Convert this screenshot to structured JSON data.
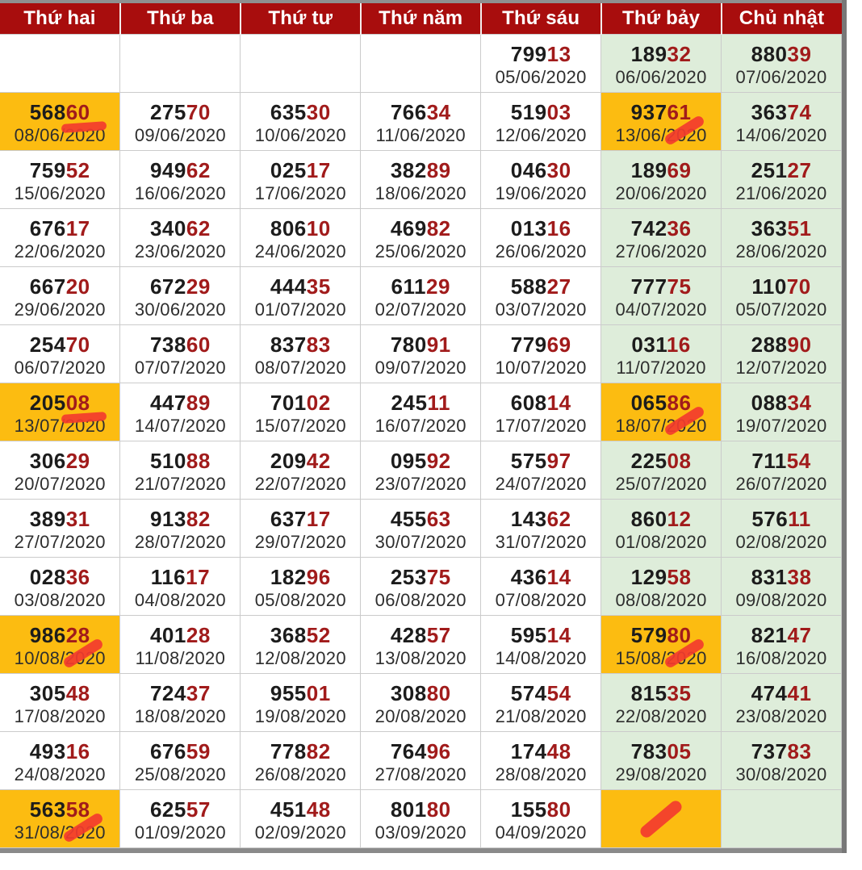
{
  "colors": {
    "header_bg": "#A80D0D",
    "header_text": "#FFFFFF",
    "cell_bg": "#FFFFFF",
    "weekend_bg": "#DEEDDA",
    "highlight_bg": "#FCBC11",
    "num_main": "#1C1C1C",
    "num_tail": "#A11B1B",
    "date_text": "#2E2E2E",
    "grid_line": "#CBCBCB",
    "marker": "#F33B2E",
    "top_bar": "#8F8F8F",
    "bottom_bar": "#8A8A8A",
    "right_bar": "#787878"
  },
  "table": {
    "days": [
      "Thứ hai",
      "Thứ ba",
      "Thứ tư",
      "Thứ năm",
      "Thứ sáu",
      "Thứ bảy",
      "Chủ nhật"
    ],
    "rows": [
      [
        null,
        null,
        null,
        null,
        {
          "head": "799",
          "tail": "13",
          "date": "05/06/2020"
        },
        {
          "head": "189",
          "tail": "32",
          "date": "06/06/2020"
        },
        {
          "head": "880",
          "tail": "39",
          "date": "07/06/2020"
        }
      ],
      [
        {
          "head": "568",
          "tail": "60",
          "date": "08/06/2020",
          "hl": true,
          "mark": "underline"
        },
        {
          "head": "275",
          "tail": "70",
          "date": "09/06/2020"
        },
        {
          "head": "635",
          "tail": "30",
          "date": "10/06/2020"
        },
        {
          "head": "766",
          "tail": "34",
          "date": "11/06/2020"
        },
        {
          "head": "519",
          "tail": "03",
          "date": "12/06/2020"
        },
        {
          "head": "937",
          "tail": "61",
          "date": "13/06/2020",
          "hl": true,
          "mark": "slash"
        },
        {
          "head": "363",
          "tail": "74",
          "date": "14/06/2020"
        }
      ],
      [
        {
          "head": "759",
          "tail": "52",
          "date": "15/06/2020"
        },
        {
          "head": "949",
          "tail": "62",
          "date": "16/06/2020"
        },
        {
          "head": "025",
          "tail": "17",
          "date": "17/06/2020"
        },
        {
          "head": "382",
          "tail": "89",
          "date": "18/06/2020"
        },
        {
          "head": "046",
          "tail": "30",
          "date": "19/06/2020"
        },
        {
          "head": "189",
          "tail": "69",
          "date": "20/06/2020"
        },
        {
          "head": "251",
          "tail": "27",
          "date": "21/06/2020"
        }
      ],
      [
        {
          "head": "676",
          "tail": "17",
          "date": "22/06/2020"
        },
        {
          "head": "340",
          "tail": "62",
          "date": "23/06/2020"
        },
        {
          "head": "806",
          "tail": "10",
          "date": "24/06/2020"
        },
        {
          "head": "469",
          "tail": "82",
          "date": "25/06/2020"
        },
        {
          "head": "013",
          "tail": "16",
          "date": "26/06/2020"
        },
        {
          "head": "742",
          "tail": "36",
          "date": "27/06/2020"
        },
        {
          "head": "363",
          "tail": "51",
          "date": "28/06/2020"
        }
      ],
      [
        {
          "head": "667",
          "tail": "20",
          "date": "29/06/2020"
        },
        {
          "head": "672",
          "tail": "29",
          "date": "30/06/2020"
        },
        {
          "head": "444",
          "tail": "35",
          "date": "01/07/2020"
        },
        {
          "head": "611",
          "tail": "29",
          "date": "02/07/2020"
        },
        {
          "head": "588",
          "tail": "27",
          "date": "03/07/2020"
        },
        {
          "head": "777",
          "tail": "75",
          "date": "04/07/2020"
        },
        {
          "head": "110",
          "tail": "70",
          "date": "05/07/2020"
        }
      ],
      [
        {
          "head": "254",
          "tail": "70",
          "date": "06/07/2020"
        },
        {
          "head": "738",
          "tail": "60",
          "date": "07/07/2020"
        },
        {
          "head": "837",
          "tail": "83",
          "date": "08/07/2020"
        },
        {
          "head": "780",
          "tail": "91",
          "date": "09/07/2020"
        },
        {
          "head": "779",
          "tail": "69",
          "date": "10/07/2020"
        },
        {
          "head": "031",
          "tail": "16",
          "date": "11/07/2020"
        },
        {
          "head": "288",
          "tail": "90",
          "date": "12/07/2020"
        }
      ],
      [
        {
          "head": "205",
          "tail": "08",
          "date": "13/07/2020",
          "hl": true,
          "mark": "underline"
        },
        {
          "head": "447",
          "tail": "89",
          "date": "14/07/2020"
        },
        {
          "head": "701",
          "tail": "02",
          "date": "15/07/2020"
        },
        {
          "head": "245",
          "tail": "11",
          "date": "16/07/2020"
        },
        {
          "head": "608",
          "tail": "14",
          "date": "17/07/2020"
        },
        {
          "head": "065",
          "tail": "86",
          "date": "18/07/2020",
          "hl": true,
          "mark": "slash"
        },
        {
          "head": "088",
          "tail": "34",
          "date": "19/07/2020"
        }
      ],
      [
        {
          "head": "306",
          "tail": "29",
          "date": "20/07/2020"
        },
        {
          "head": "510",
          "tail": "88",
          "date": "21/07/2020"
        },
        {
          "head": "209",
          "tail": "42",
          "date": "22/07/2020"
        },
        {
          "head": "095",
          "tail": "92",
          "date": "23/07/2020"
        },
        {
          "head": "575",
          "tail": "97",
          "date": "24/07/2020"
        },
        {
          "head": "225",
          "tail": "08",
          "date": "25/07/2020"
        },
        {
          "head": "711",
          "tail": "54",
          "date": "26/07/2020"
        }
      ],
      [
        {
          "head": "389",
          "tail": "31",
          "date": "27/07/2020"
        },
        {
          "head": "913",
          "tail": "82",
          "date": "28/07/2020"
        },
        {
          "head": "637",
          "tail": "17",
          "date": "29/07/2020"
        },
        {
          "head": "455",
          "tail": "63",
          "date": "30/07/2020"
        },
        {
          "head": "143",
          "tail": "62",
          "date": "31/07/2020"
        },
        {
          "head": "860",
          "tail": "12",
          "date": "01/08/2020"
        },
        {
          "head": "576",
          "tail": "11",
          "date": "02/08/2020"
        }
      ],
      [
        {
          "head": "028",
          "tail": "36",
          "date": "03/08/2020"
        },
        {
          "head": "116",
          "tail": "17",
          "date": "04/08/2020"
        },
        {
          "head": "182",
          "tail": "96",
          "date": "05/08/2020"
        },
        {
          "head": "253",
          "tail": "75",
          "date": "06/08/2020"
        },
        {
          "head": "436",
          "tail": "14",
          "date": "07/08/2020"
        },
        {
          "head": "129",
          "tail": "58",
          "date": "08/08/2020"
        },
        {
          "head": "831",
          "tail": "38",
          "date": "09/08/2020"
        }
      ],
      [
        {
          "head": "986",
          "tail": "28",
          "date": "10/08/2020",
          "hl": true,
          "mark": "slash"
        },
        {
          "head": "401",
          "tail": "28",
          "date": "11/08/2020"
        },
        {
          "head": "368",
          "tail": "52",
          "date": "12/08/2020"
        },
        {
          "head": "428",
          "tail": "57",
          "date": "13/08/2020"
        },
        {
          "head": "595",
          "tail": "14",
          "date": "14/08/2020"
        },
        {
          "head": "579",
          "tail": "80",
          "date": "15/08/2020",
          "hl": true,
          "mark": "slash"
        },
        {
          "head": "821",
          "tail": "47",
          "date": "16/08/2020"
        }
      ],
      [
        {
          "head": "305",
          "tail": "48",
          "date": "17/08/2020"
        },
        {
          "head": "724",
          "tail": "37",
          "date": "18/08/2020"
        },
        {
          "head": "955",
          "tail": "01",
          "date": "19/08/2020"
        },
        {
          "head": "308",
          "tail": "80",
          "date": "20/08/2020"
        },
        {
          "head": "574",
          "tail": "54",
          "date": "21/08/2020"
        },
        {
          "head": "815",
          "tail": "35",
          "date": "22/08/2020"
        },
        {
          "head": "474",
          "tail": "41",
          "date": "23/08/2020"
        }
      ],
      [
        {
          "head": "493",
          "tail": "16",
          "date": "24/08/2020"
        },
        {
          "head": "676",
          "tail": "59",
          "date": "25/08/2020"
        },
        {
          "head": "778",
          "tail": "82",
          "date": "26/08/2020"
        },
        {
          "head": "764",
          "tail": "96",
          "date": "27/08/2020"
        },
        {
          "head": "174",
          "tail": "48",
          "date": "28/08/2020"
        },
        {
          "head": "783",
          "tail": "05",
          "date": "29/08/2020"
        },
        {
          "head": "737",
          "tail": "83",
          "date": "30/08/2020"
        }
      ],
      [
        {
          "head": "563",
          "tail": "58",
          "date": "31/08/2020",
          "hl": true,
          "mark": "slash"
        },
        {
          "head": "625",
          "tail": "57",
          "date": "01/09/2020"
        },
        {
          "head": "451",
          "tail": "48",
          "date": "02/09/2020"
        },
        {
          "head": "801",
          "tail": "80",
          "date": "03/09/2020"
        },
        {
          "head": "155",
          "tail": "80",
          "date": "04/09/2020"
        },
        {
          "hl": true,
          "mark": "slash-center"
        },
        null
      ]
    ]
  }
}
